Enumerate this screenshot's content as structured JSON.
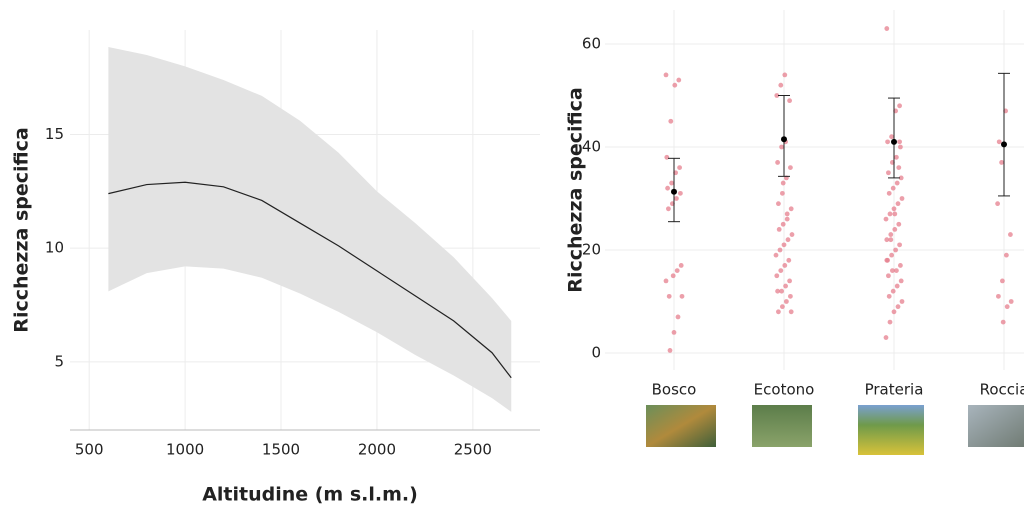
{
  "chart_data": [
    {
      "type": "line",
      "xlabel": "Altitudine (m s.l.m.)",
      "ylabel": "Ricchezza specifica",
      "x": [
        600,
        800,
        1000,
        1200,
        1400,
        1600,
        1800,
        2000,
        2200,
        2400,
        2600,
        2700
      ],
      "values": [
        12.4,
        12.8,
        12.9,
        12.7,
        12.1,
        11.1,
        10.1,
        9.0,
        7.9,
        6.8,
        5.4,
        4.3
      ],
      "lower": [
        8.1,
        8.9,
        9.2,
        9.1,
        8.7,
        8.0,
        7.2,
        6.3,
        5.3,
        4.4,
        3.4,
        2.8
      ],
      "upper": [
        18.85,
        18.5,
        18.0,
        17.4,
        16.7,
        15.6,
        14.2,
        12.5,
        11.1,
        9.6,
        7.8,
        6.8
      ],
      "line_color": "#222222",
      "band_color": "#e3e3e3",
      "xlim": [
        400,
        2850
      ],
      "ylim": [
        2,
        19.6
      ],
      "xticks": [
        500,
        1000,
        1500,
        2000,
        2500
      ],
      "yticks": [
        5,
        10,
        15
      ],
      "grid": true
    },
    {
      "type": "strip",
      "ylabel": "Ricchezza specifica",
      "categories": [
        "Bosco",
        "Ecotono",
        "Prateria",
        "Roccia"
      ],
      "points": [
        [
          54,
          53,
          52,
          45,
          38,
          36,
          35,
          33,
          32,
          31,
          30,
          29,
          28,
          17,
          16,
          15,
          11,
          11,
          7,
          4,
          0.5,
          14
        ],
        [
          54,
          52,
          50,
          49,
          41,
          40,
          37,
          36,
          34,
          31,
          29,
          28,
          26,
          25,
          24,
          23,
          22,
          21,
          20,
          19,
          18,
          17,
          16,
          15,
          14,
          13,
          12,
          12,
          11,
          10,
          9,
          8,
          8,
          27,
          33
        ],
        [
          63,
          48,
          47,
          42,
          41,
          40,
          38,
          37,
          35,
          34,
          33,
          32,
          31,
          30,
          29,
          28,
          27,
          26,
          25,
          24,
          23,
          22,
          21,
          20,
          19,
          18,
          17,
          16,
          16,
          15,
          14,
          13,
          12,
          11,
          10,
          9,
          8,
          6,
          3,
          36,
          27,
          22,
          18,
          41
        ],
        [
          47,
          37,
          29,
          23,
          19,
          14,
          11,
          10,
          9,
          6,
          41
        ]
      ],
      "mean": [
        31.3,
        41.5,
        41,
        40.5
      ],
      "lower": [
        25.5,
        34.3,
        34,
        30.5
      ],
      "upper": [
        37.8,
        50,
        49.5,
        54.3
      ],
      "point_color": "#e57f8e",
      "mean_color": "#000000",
      "ylim": [
        -3.3,
        66.6
      ],
      "yticks": [
        0,
        20,
        40,
        60
      ],
      "grid": true
    }
  ]
}
